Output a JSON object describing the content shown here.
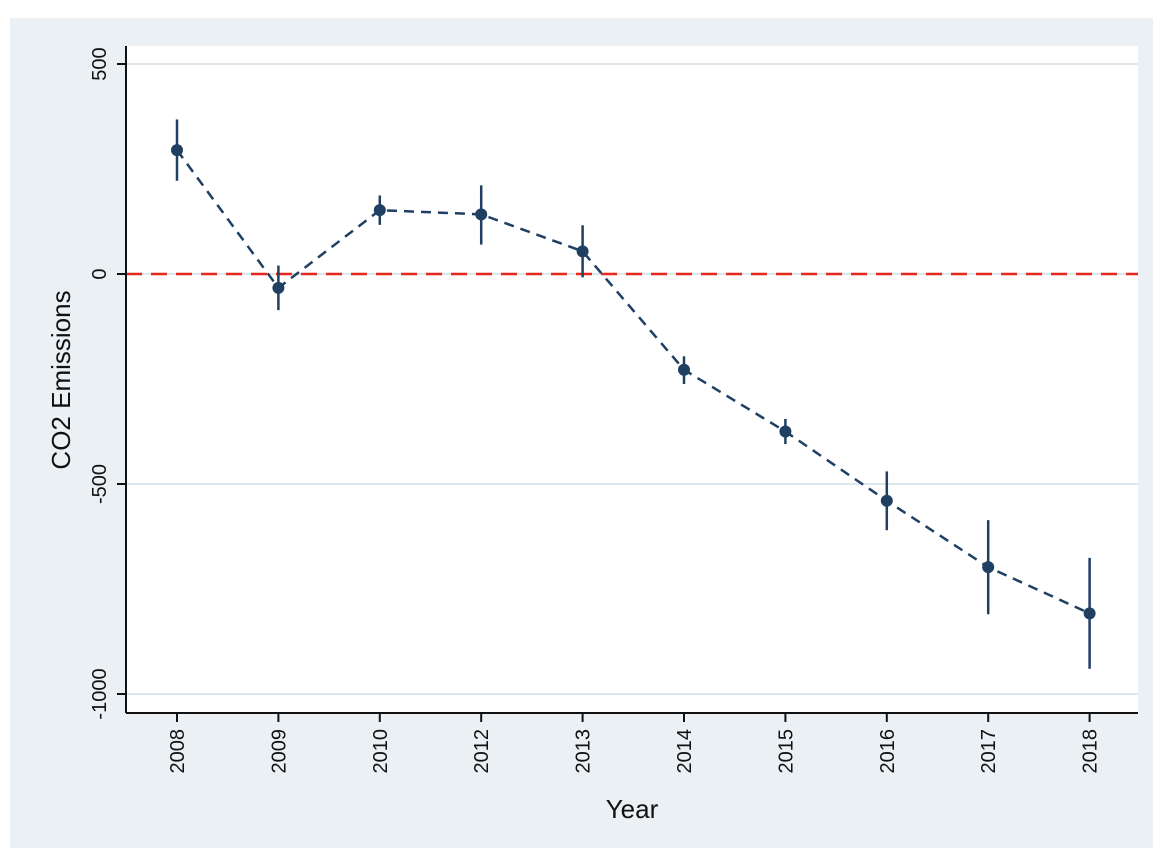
{
  "chart_data": {
    "type": "line",
    "title": "",
    "xlabel": "Year",
    "ylabel": "CO2 Emissions",
    "categories": [
      "2008",
      "2009",
      "2010",
      "2012",
      "2013",
      "2014",
      "2015",
      "2016",
      "2017",
      "2018"
    ],
    "series": [
      {
        "values": [
          295,
          -33,
          152,
          142,
          54,
          -228,
          -375,
          -540,
          -698,
          -808
        ],
        "ci_low": [
          222,
          -86,
          117,
          70,
          -8,
          -262,
          -405,
          -610,
          -810,
          -940
        ],
        "ci_high": [
          368,
          20,
          187,
          211,
          116,
          -196,
          -345,
          -470,
          -586,
          -676
        ],
        "line_style": "dashed",
        "color": "#1f3f63"
      }
    ],
    "reference_line": {
      "y": 0,
      "color": "#e8271e",
      "line_style": "dashed"
    },
    "ylim": [
      -1000,
      500
    ],
    "y_ticks": [
      -1000,
      -500,
      0,
      500
    ],
    "y_tick_labels": [
      "-1000",
      "-500",
      "0",
      "500"
    ],
    "grid": "horizontal",
    "legend": "none",
    "colors": {
      "outer_background": "#eaf0f3",
      "plot_background": "#ffffff",
      "grid": "#dde6ea",
      "axis": "#111111"
    }
  }
}
